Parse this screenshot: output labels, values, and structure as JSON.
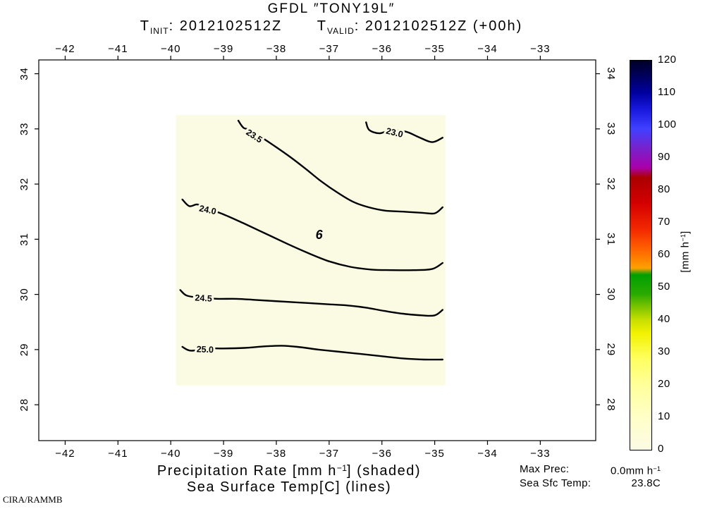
{
  "header": {
    "title": "GFDL ″TONY19L″",
    "tinit_pre": "T",
    "tinit_sub": "INIT",
    "tinit_post": ": 2012102512Z",
    "tvalid_pre": "T",
    "tvalid_sub": "VALID",
    "tvalid_post": ": 2012102512Z (+00h)"
  },
  "footer": {
    "line1_pre": "Precipitation Rate [mm h",
    "line1_sup": "−1",
    "line1_post": "] (shaded)",
    "line2": "Sea Surface Temp[C] (lines)"
  },
  "stats": {
    "max_prec_label": "Max Prec:",
    "max_prec_pre": "0.0mm h",
    "max_prec_sup": "−1",
    "sst_label": "Sea Sfc Temp:",
    "sst_value": "23.8C"
  },
  "credit": "CIRA/RAMMB",
  "chart_data": {
    "type": "contour",
    "title": "GFDL TONY19L precipitation rate (shaded) and sea surface temperature (lines)",
    "x_axis": {
      "ticks": [
        -42,
        -41,
        -40,
        -39,
        -38,
        -37,
        -36,
        -35,
        -34,
        -33
      ],
      "range": [
        -42.5,
        -31.95
      ]
    },
    "y_axis": {
      "ticks": [
        28,
        29,
        30,
        31,
        32,
        33,
        34
      ],
      "range": [
        27.35,
        34.25
      ]
    },
    "shaded_region": {
      "lon": [
        -39.9,
        -34.8
      ],
      "lat": [
        28.35,
        33.25
      ],
      "color": "#fbfbe4",
      "value_mm_h": 0.0
    },
    "contours": [
      {
        "level": "23.0",
        "label_at": {
          "lon": -35.76,
          "lat": 32.93,
          "rot": 14
        },
        "points": [
          [
            -36.3,
            33.12
          ],
          [
            -36.24,
            32.98
          ],
          [
            -36.05,
            32.92
          ],
          [
            -35.85,
            32.97
          ],
          [
            -35.55,
            32.95
          ],
          [
            -35.3,
            32.85
          ],
          [
            -35.05,
            32.76
          ],
          [
            -34.85,
            32.84
          ]
        ]
      },
      {
        "level": "23.5",
        "label_at": {
          "lon": -38.42,
          "lat": 32.87,
          "rot": 33
        },
        "points": [
          [
            -38.72,
            33.15
          ],
          [
            -38.62,
            33.02
          ],
          [
            -38.48,
            32.98
          ],
          [
            -38.3,
            32.86
          ],
          [
            -38.05,
            32.7
          ],
          [
            -37.75,
            32.5
          ],
          [
            -37.45,
            32.28
          ],
          [
            -37.15,
            32.05
          ],
          [
            -36.85,
            31.85
          ],
          [
            -36.55,
            31.68
          ],
          [
            -36.25,
            31.58
          ],
          [
            -35.95,
            31.52
          ],
          [
            -35.6,
            31.5
          ],
          [
            -35.25,
            31.48
          ],
          [
            -35.0,
            31.47
          ],
          [
            -34.85,
            31.58
          ]
        ]
      },
      {
        "level": "24.0",
        "label_at": {
          "lon": -39.3,
          "lat": 31.53,
          "rot": 12
        },
        "points": [
          [
            -39.78,
            31.72
          ],
          [
            -39.65,
            31.6
          ],
          [
            -39.5,
            31.63
          ],
          [
            -39.35,
            31.57
          ],
          [
            -39.0,
            31.45
          ],
          [
            -38.6,
            31.28
          ],
          [
            -38.2,
            31.1
          ],
          [
            -37.8,
            30.92
          ],
          [
            -37.4,
            30.75
          ],
          [
            -37.0,
            30.6
          ],
          [
            -36.6,
            30.5
          ],
          [
            -36.2,
            30.45
          ],
          [
            -35.8,
            30.44
          ],
          [
            -35.4,
            30.44
          ],
          [
            -35.05,
            30.46
          ],
          [
            -34.85,
            30.57
          ]
        ]
      },
      {
        "level": "24.5",
        "label_at": {
          "lon": -39.38,
          "lat": 29.93,
          "rot": 3
        },
        "points": [
          [
            -39.82,
            30.08
          ],
          [
            -39.7,
            29.98
          ],
          [
            -39.45,
            29.94
          ],
          [
            -39.1,
            29.92
          ],
          [
            -38.75,
            29.92
          ],
          [
            -38.4,
            29.9
          ],
          [
            -38.05,
            29.88
          ],
          [
            -37.7,
            29.86
          ],
          [
            -37.35,
            29.84
          ],
          [
            -37.0,
            29.82
          ],
          [
            -36.65,
            29.8
          ],
          [
            -36.3,
            29.76
          ],
          [
            -35.95,
            29.7
          ],
          [
            -35.6,
            29.65
          ],
          [
            -35.25,
            29.62
          ],
          [
            -35.0,
            29.62
          ],
          [
            -34.85,
            29.72
          ]
        ]
      },
      {
        "level": "25.0",
        "label_at": {
          "lon": -39.35,
          "lat": 29.0,
          "rot": 2
        },
        "points": [
          [
            -39.78,
            29.05
          ],
          [
            -39.62,
            28.98
          ],
          [
            -39.3,
            29.02
          ],
          [
            -39.0,
            29.02
          ],
          [
            -38.6,
            29.03
          ],
          [
            -38.2,
            29.06
          ],
          [
            -37.9,
            29.07
          ],
          [
            -37.6,
            29.05
          ],
          [
            -37.2,
            29.0
          ],
          [
            -36.8,
            28.96
          ],
          [
            -36.4,
            28.92
          ],
          [
            -36.0,
            28.88
          ],
          [
            -35.6,
            28.84
          ],
          [
            -35.2,
            28.82
          ],
          [
            -34.85,
            28.82
          ]
        ]
      }
    ],
    "storm_marker": {
      "symbol": "6",
      "lon": -37.19,
      "lat": 31.08,
      "color": "#dd1111"
    },
    "colorbar": {
      "min": 0,
      "max": 120,
      "tick_step": 10,
      "unit_pre": "[mm h",
      "unit_sup": "−1",
      "unit_post": "]",
      "stops": [
        {
          "v": 0,
          "c": "#fbfbe4"
        },
        {
          "v": 10,
          "c": "#ffffc8"
        },
        {
          "v": 20,
          "c": "#ffff9a"
        },
        {
          "v": 28,
          "c": "#ffff60"
        },
        {
          "v": 36,
          "c": "#f2f200"
        },
        {
          "v": 40,
          "c": "#c8e000"
        },
        {
          "v": 44,
          "c": "#7cc400"
        },
        {
          "v": 48,
          "c": "#2aaa00"
        },
        {
          "v": 54,
          "c": "#00a000"
        },
        {
          "v": 56,
          "c": "#ffa000"
        },
        {
          "v": 62,
          "c": "#ff6000"
        },
        {
          "v": 68,
          "c": "#f22800"
        },
        {
          "v": 76,
          "c": "#d40000"
        },
        {
          "v": 84,
          "c": "#aa0000"
        },
        {
          "v": 87,
          "c": "#aa00aa"
        },
        {
          "v": 93,
          "c": "#7722cc"
        },
        {
          "v": 99,
          "c": "#4040ff"
        },
        {
          "v": 105,
          "c": "#1818dd"
        },
        {
          "v": 110,
          "c": "#0000a0"
        },
        {
          "v": 115,
          "c": "#000060"
        },
        {
          "v": 120,
          "c": "#000026"
        }
      ]
    }
  }
}
